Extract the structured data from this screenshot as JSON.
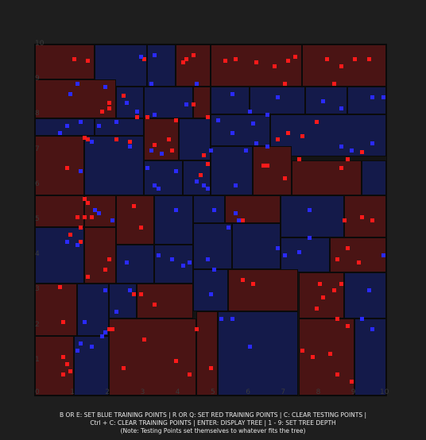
{
  "axes": {
    "x_ticks": [
      "0",
      "1",
      "2",
      "3",
      "4",
      "5",
      "6",
      "7",
      "8",
      "9",
      "10"
    ],
    "y_ticks": [
      "1",
      "2",
      "3",
      "4",
      "5",
      "6",
      "7",
      "8",
      "9",
      "10"
    ]
  },
  "colors": {
    "red_region": "#4a1414",
    "blue_region": "#141a4a",
    "red_point": "#ff1a1a",
    "blue_point": "#2a2aff"
  },
  "regions": [
    {
      "c": "red",
      "x": [
        0,
        1.7
      ],
      "y": [
        9,
        10
      ]
    },
    {
      "c": "blue",
      "x": [
        1.7,
        3.2
      ],
      "y": [
        8.8,
        10
      ]
    },
    {
      "c": "blue",
      "x": [
        3.2,
        4
      ],
      "y": [
        8.8,
        10
      ]
    },
    {
      "c": "red",
      "x": [
        4,
        5
      ],
      "y": [
        8.8,
        10
      ]
    },
    {
      "c": "red",
      "x": [
        5,
        7.6
      ],
      "y": [
        8.8,
        10
      ]
    },
    {
      "c": "red",
      "x": [
        7.6,
        10
      ],
      "y": [
        8.8,
        10
      ]
    },
    {
      "c": "red",
      "x": [
        0,
        2.3
      ],
      "y": [
        7.9,
        9
      ]
    },
    {
      "c": "blue",
      "x": [
        2.3,
        3.1
      ],
      "y": [
        7.9,
        8.8
      ]
    },
    {
      "c": "blue",
      "x": [
        3.1,
        4.5
      ],
      "y": [
        7.9,
        8.8
      ]
    },
    {
      "c": "red",
      "x": [
        4.5,
        5
      ],
      "y": [
        7.9,
        8.8
      ]
    },
    {
      "c": "blue",
      "x": [
        5,
        6.1
      ],
      "y": [
        8,
        8.8
      ]
    },
    {
      "c": "blue",
      "x": [
        6.1,
        7.7
      ],
      "y": [
        8,
        8.8
      ]
    },
    {
      "c": "blue",
      "x": [
        7.7,
        8.9
      ],
      "y": [
        8,
        8.8
      ]
    },
    {
      "c": "blue",
      "x": [
        8.9,
        10
      ],
      "y": [
        8,
        8.8
      ]
    },
    {
      "c": "blue",
      "x": [
        0,
        1.7
      ],
      "y": [
        7.4,
        7.9
      ]
    },
    {
      "c": "blue",
      "x": [
        1.7,
        3.1
      ],
      "y": [
        7.4,
        7.9
      ]
    },
    {
      "c": "red",
      "x": [
        3.1,
        4.1
      ],
      "y": [
        6.7,
        7.9
      ]
    },
    {
      "c": "blue",
      "x": [
        4.1,
        5
      ],
      "y": [
        6.7,
        7.9
      ]
    },
    {
      "c": "blue",
      "x": [
        5,
        6.7
      ],
      "y": [
        7.1,
        8
      ]
    },
    {
      "c": "blue",
      "x": [
        6.7,
        10
      ],
      "y": [
        6.8,
        8
      ]
    },
    {
      "c": "red",
      "x": [
        0,
        1.4
      ],
      "y": [
        5.7,
        7.4
      ]
    },
    {
      "c": "blue",
      "x": [
        1.4,
        3.1
      ],
      "y": [
        5.7,
        7.4
      ]
    },
    {
      "c": "blue",
      "x": [
        3.1,
        4.2
      ],
      "y": [
        5.7,
        6.7
      ]
    },
    {
      "c": "blue",
      "x": [
        4.2,
        5
      ],
      "y": [
        5.7,
        6.7
      ]
    },
    {
      "c": "blue",
      "x": [
        5,
        6.2
      ],
      "y": [
        5.7,
        7.1
      ]
    },
    {
      "c": "red",
      "x": [
        6.2,
        7.3
      ],
      "y": [
        5.7,
        7.1
      ]
    },
    {
      "c": "red",
      "x": [
        7.3,
        9.3
      ],
      "y": [
        5.7,
        6.7
      ]
    },
    {
      "c": "blue",
      "x": [
        9.3,
        10
      ],
      "y": [
        5.7,
        6.7
      ]
    },
    {
      "c": "red",
      "x": [
        0,
        1.4
      ],
      "y": [
        4.8,
        5.7
      ]
    },
    {
      "c": "red",
      "x": [
        1.4,
        2.3
      ],
      "y": [
        4.8,
        5.7
      ]
    },
    {
      "c": "red",
      "x": [
        2.3,
        3.4
      ],
      "y": [
        4.3,
        5.7
      ]
    },
    {
      "c": "blue",
      "x": [
        3.4,
        4.5
      ],
      "y": [
        4.3,
        5.7
      ]
    },
    {
      "c": "blue",
      "x": [
        4.5,
        5.4
      ],
      "y": [
        4.9,
        5.7
      ]
    },
    {
      "c": "red",
      "x": [
        5.4,
        7
      ],
      "y": [
        4.9,
        5.7
      ]
    },
    {
      "c": "blue",
      "x": [
        7,
        8.8
      ],
      "y": [
        4.5,
        5.7
      ]
    },
    {
      "c": "red",
      "x": [
        8.8,
        10
      ],
      "y": [
        4.5,
        5.7
      ]
    },
    {
      "c": "blue",
      "x": [
        0,
        1.4
      ],
      "y": [
        3.2,
        4.8
      ]
    },
    {
      "c": "red",
      "x": [
        1.4,
        2.3
      ],
      "y": [
        3.2,
        4.8
      ]
    },
    {
      "c": "blue",
      "x": [
        2.3,
        3.4
      ],
      "y": [
        3.2,
        4.3
      ]
    },
    {
      "c": "blue",
      "x": [
        3.4,
        4.5
      ],
      "y": [
        3.2,
        4.3
      ]
    },
    {
      "c": "blue",
      "x": [
        4.5,
        5.6
      ],
      "y": [
        3.6,
        4.9
      ]
    },
    {
      "c": "blue",
      "x": [
        5.6,
        7
      ],
      "y": [
        3.6,
        4.9
      ]
    },
    {
      "c": "blue",
      "x": [
        7,
        8.4
      ],
      "y": [
        3.5,
        4.5
      ]
    },
    {
      "c": "red",
      "x": [
        8.4,
        10
      ],
      "y": [
        3.5,
        4.5
      ]
    },
    {
      "c": "red",
      "x": [
        0,
        1.2
      ],
      "y": [
        1.7,
        3.2
      ]
    },
    {
      "c": "blue",
      "x": [
        1.2,
        2.1
      ],
      "y": [
        1.7,
        3.2
      ]
    },
    {
      "c": "blue",
      "x": [
        2.1,
        2.9
      ],
      "y": [
        2.2,
        3.2
      ]
    },
    {
      "c": "red",
      "x": [
        2.9,
        4.5
      ],
      "y": [
        2.2,
        3.2
      ]
    },
    {
      "c": "blue",
      "x": [
        4.5,
        5.5
      ],
      "y": [
        2.4,
        3.6
      ]
    },
    {
      "c": "red",
      "x": [
        5.5,
        7.5
      ],
      "y": [
        2.4,
        3.6
      ]
    },
    {
      "c": "red",
      "x": [
        7.5,
        8.8
      ],
      "y": [
        2.2,
        3.5
      ]
    },
    {
      "c": "blue",
      "x": [
        8.8,
        10
      ],
      "y": [
        2.2,
        3.5
      ]
    },
    {
      "c": "red",
      "x": [
        0,
        1.1
      ],
      "y": [
        0,
        1.7
      ]
    },
    {
      "c": "blue",
      "x": [
        1.1,
        2.1
      ],
      "y": [
        0,
        1.7
      ]
    },
    {
      "c": "red",
      "x": [
        2.1,
        4.6
      ],
      "y": [
        0,
        2.2
      ]
    },
    {
      "c": "red",
      "x": [
        4.6,
        5.2
      ],
      "y": [
        0,
        2.4
      ]
    },
    {
      "c": "blue",
      "x": [
        5.2,
        7.5
      ],
      "y": [
        0,
        2.4
      ]
    },
    {
      "c": "red",
      "x": [
        7.5,
        9.1
      ],
      "y": [
        0,
        2.2
      ]
    },
    {
      "c": "blue",
      "x": [
        9.1,
        10
      ],
      "y": [
        0,
        2.2
      ]
    }
  ],
  "points": [
    {
      "c": "red",
      "x": 1.1,
      "y": 9.6
    },
    {
      "c": "red",
      "x": 1.5,
      "y": 9.55
    },
    {
      "c": "red",
      "x": 3.1,
      "y": 9.6
    },
    {
      "c": "red",
      "x": 4.3,
      "y": 9.6
    },
    {
      "c": "red",
      "x": 4.5,
      "y": 9.7
    },
    {
      "c": "red",
      "x": 4.2,
      "y": 9.5
    },
    {
      "c": "red",
      "x": 5.4,
      "y": 9.55
    },
    {
      "c": "red",
      "x": 5.7,
      "y": 9.6
    },
    {
      "c": "red",
      "x": 6.3,
      "y": 9.5
    },
    {
      "c": "red",
      "x": 6.8,
      "y": 9.4
    },
    {
      "c": "red",
      "x": 7.2,
      "y": 9.55
    },
    {
      "c": "red",
      "x": 7.4,
      "y": 9.65
    },
    {
      "c": "red",
      "x": 7.1,
      "y": 8.9
    },
    {
      "c": "red",
      "x": 8.3,
      "y": 9.6
    },
    {
      "c": "red",
      "x": 8.7,
      "y": 9.4
    },
    {
      "c": "red",
      "x": 9.1,
      "y": 9.6
    },
    {
      "c": "red",
      "x": 9.5,
      "y": 9.6
    },
    {
      "c": "red",
      "x": 8.5,
      "y": 8.9
    },
    {
      "c": "blue",
      "x": 3.0,
      "y": 9.65
    },
    {
      "c": "blue",
      "x": 3.4,
      "y": 9.7
    },
    {
      "c": "blue",
      "x": 3.3,
      "y": 8.9
    },
    {
      "c": "blue",
      "x": 4.6,
      "y": 8.9
    },
    {
      "c": "blue",
      "x": 1.2,
      "y": 8.9
    },
    {
      "c": "blue",
      "x": 2.0,
      "y": 8.8
    },
    {
      "c": "blue",
      "x": 1.0,
      "y": 8.6
    },
    {
      "c": "red",
      "x": 2.1,
      "y": 8.2
    },
    {
      "c": "red",
      "x": 2.1,
      "y": 8.35
    },
    {
      "c": "red",
      "x": 1.9,
      "y": 8.1
    },
    {
      "c": "red",
      "x": 2.5,
      "y": 8.55
    },
    {
      "c": "red",
      "x": 4.5,
      "y": 8.3
    },
    {
      "c": "red",
      "x": 4.9,
      "y": 7.95
    },
    {
      "c": "red",
      "x": 3.2,
      "y": 7.95
    },
    {
      "c": "red",
      "x": 2.9,
      "y": 7.95
    },
    {
      "c": "red",
      "x": 4.0,
      "y": 7.85
    },
    {
      "c": "blue",
      "x": 2.6,
      "y": 8.35
    },
    {
      "c": "blue",
      "x": 2.9,
      "y": 8.1
    },
    {
      "c": "blue",
      "x": 3.4,
      "y": 8.0
    },
    {
      "c": "blue",
      "x": 4.3,
      "y": 8.3
    },
    {
      "c": "blue",
      "x": 5.6,
      "y": 8.6
    },
    {
      "c": "blue",
      "x": 6.1,
      "y": 8.1
    },
    {
      "c": "blue",
      "x": 6.6,
      "y": 8.0
    },
    {
      "c": "blue",
      "x": 6.9,
      "y": 8.5
    },
    {
      "c": "blue",
      "x": 8.2,
      "y": 8.4
    },
    {
      "c": "blue",
      "x": 8.7,
      "y": 8.2
    },
    {
      "c": "blue",
      "x": 9.6,
      "y": 8.5
    },
    {
      "c": "blue",
      "x": 9.9,
      "y": 8.5
    },
    {
      "c": "blue",
      "x": 5.2,
      "y": 7.85
    },
    {
      "c": "blue",
      "x": 5.6,
      "y": 7.5
    },
    {
      "c": "blue",
      "x": 6.2,
      "y": 7.75
    },
    {
      "c": "blue",
      "x": 6.6,
      "y": 7.1
    },
    {
      "c": "red",
      "x": 7.2,
      "y": 7.5
    },
    {
      "c": "red",
      "x": 7.6,
      "y": 7.4
    },
    {
      "c": "red",
      "x": 8.0,
      "y": 7.8
    },
    {
      "c": "red",
      "x": 6.9,
      "y": 7.3
    },
    {
      "c": "blue",
      "x": 0.9,
      "y": 7.7
    },
    {
      "c": "blue",
      "x": 1.3,
      "y": 7.8
    },
    {
      "c": "blue",
      "x": 1.8,
      "y": 7.7
    },
    {
      "c": "blue",
      "x": 2.3,
      "y": 7.8
    },
    {
      "c": "blue",
      "x": 0.7,
      "y": 7.5
    },
    {
      "c": "red",
      "x": 1.4,
      "y": 7.35
    },
    {
      "c": "red",
      "x": 1.5,
      "y": 7.3
    },
    {
      "c": "blue",
      "x": 1.6,
      "y": 7.25
    },
    {
      "c": "red",
      "x": 2.3,
      "y": 7.3
    },
    {
      "c": "red",
      "x": 2.7,
      "y": 7.25
    },
    {
      "c": "red",
      "x": 3.4,
      "y": 7.15
    },
    {
      "c": "red",
      "x": 3.8,
      "y": 7.3
    },
    {
      "c": "red",
      "x": 3.9,
      "y": 7.0
    },
    {
      "c": "blue",
      "x": 3.3,
      "y": 7.0
    },
    {
      "c": "blue",
      "x": 3.6,
      "y": 6.9
    },
    {
      "c": "blue",
      "x": 2.7,
      "y": 7.1
    },
    {
      "c": "blue",
      "x": 5.0,
      "y": 7.0
    },
    {
      "c": "blue",
      "x": 6.0,
      "y": 7.0
    },
    {
      "c": "blue",
      "x": 6.3,
      "y": 7.2
    },
    {
      "c": "blue",
      "x": 8.7,
      "y": 7.1
    },
    {
      "c": "blue",
      "x": 9.0,
      "y": 7.0
    },
    {
      "c": "blue",
      "x": 9.6,
      "y": 7.2
    },
    {
      "c": "red",
      "x": 8.9,
      "y": 6.75
    },
    {
      "c": "red",
      "x": 9.3,
      "y": 6.95
    },
    {
      "c": "red",
      "x": 8.7,
      "y": 6.5
    },
    {
      "c": "red",
      "x": 7.5,
      "y": 6.75
    },
    {
      "c": "red",
      "x": 7.1,
      "y": 6.2
    },
    {
      "c": "red",
      "x": 6.6,
      "y": 6.55
    },
    {
      "c": "red",
      "x": 6.5,
      "y": 6.55
    },
    {
      "c": "red",
      "x": 4.9,
      "y": 6.6
    },
    {
      "c": "red",
      "x": 4.8,
      "y": 6.85
    },
    {
      "c": "red",
      "x": 4.7,
      "y": 6.3
    },
    {
      "c": "red",
      "x": 0.9,
      "y": 6.5
    },
    {
      "c": "blue",
      "x": 1.3,
      "y": 6.4
    },
    {
      "c": "blue",
      "x": 3.2,
      "y": 6.5
    },
    {
      "c": "blue",
      "x": 3.4,
      "y": 6.0
    },
    {
      "c": "blue",
      "x": 4.0,
      "y": 6.4
    },
    {
      "c": "blue",
      "x": 4.6,
      "y": 6.1
    },
    {
      "c": "blue",
      "x": 4.8,
      "y": 6.0
    },
    {
      "c": "blue",
      "x": 4.9,
      "y": 5.9
    },
    {
      "c": "blue",
      "x": 3.5,
      "y": 5.9
    },
    {
      "c": "blue",
      "x": 5.7,
      "y": 6.0
    },
    {
      "c": "red",
      "x": 1.4,
      "y": 5.6
    },
    {
      "c": "red",
      "x": 1.5,
      "y": 5.5
    },
    {
      "c": "red",
      "x": 1.4,
      "y": 5.1
    },
    {
      "c": "red",
      "x": 1.6,
      "y": 5.1
    },
    {
      "c": "red",
      "x": 1.2,
      "y": 5.1
    },
    {
      "c": "red",
      "x": 1.3,
      "y": 4.8
    },
    {
      "c": "red",
      "x": 2.8,
      "y": 5.4
    },
    {
      "c": "red",
      "x": 3.0,
      "y": 4.8
    },
    {
      "c": "red",
      "x": 5.9,
      "y": 5.0
    },
    {
      "c": "red",
      "x": 9.3,
      "y": 5.1
    },
    {
      "c": "red",
      "x": 9.6,
      "y": 5.0
    },
    {
      "c": "red",
      "x": 8.8,
      "y": 5.0
    },
    {
      "c": "blue",
      "x": 1.7,
      "y": 5.3
    },
    {
      "c": "blue",
      "x": 1.8,
      "y": 5.2
    },
    {
      "c": "blue",
      "x": 2.2,
      "y": 5.0
    },
    {
      "c": "blue",
      "x": 4.0,
      "y": 5.3
    },
    {
      "c": "blue",
      "x": 5.1,
      "y": 5.3
    },
    {
      "c": "blue",
      "x": 5.7,
      "y": 5.2
    },
    {
      "c": "blue",
      "x": 5.8,
      "y": 5.0
    },
    {
      "c": "blue",
      "x": 5.5,
      "y": 4.8
    },
    {
      "c": "blue",
      "x": 7.8,
      "y": 5.3
    },
    {
      "c": "red",
      "x": 1.0,
      "y": 4.6
    },
    {
      "c": "red",
      "x": 1.3,
      "y": 4.4
    },
    {
      "c": "red",
      "x": 2.1,
      "y": 3.9
    },
    {
      "c": "red",
      "x": 2.0,
      "y": 3.6
    },
    {
      "c": "red",
      "x": 1.5,
      "y": 3.4
    },
    {
      "c": "red",
      "x": 8.9,
      "y": 4.2
    },
    {
      "c": "red",
      "x": 8.6,
      "y": 3.9
    },
    {
      "c": "red",
      "x": 9.2,
      "y": 3.8
    },
    {
      "c": "blue",
      "x": 0.9,
      "y": 4.4
    },
    {
      "c": "blue",
      "x": 1.2,
      "y": 4.3
    },
    {
      "c": "blue",
      "x": 2.6,
      "y": 3.8
    },
    {
      "c": "blue",
      "x": 3.5,
      "y": 4.0
    },
    {
      "c": "blue",
      "x": 3.9,
      "y": 3.9
    },
    {
      "c": "blue",
      "x": 4.2,
      "y": 3.7
    },
    {
      "c": "blue",
      "x": 4.4,
      "y": 3.8
    },
    {
      "c": "blue",
      "x": 5.1,
      "y": 3.6
    },
    {
      "c": "blue",
      "x": 6.9,
      "y": 4.2
    },
    {
      "c": "blue",
      "x": 7.1,
      "y": 4.0
    },
    {
      "c": "blue",
      "x": 7.5,
      "y": 4.1
    },
    {
      "c": "blue",
      "x": 7.8,
      "y": 4.5
    },
    {
      "c": "blue",
      "x": 9.9,
      "y": 4.0
    },
    {
      "c": "blue",
      "x": 4.9,
      "y": 3.9
    },
    {
      "c": "red",
      "x": 0.7,
      "y": 3.1
    },
    {
      "c": "red",
      "x": 0.8,
      "y": 2.1
    },
    {
      "c": "red",
      "x": 3.0,
      "y": 2.9
    },
    {
      "c": "red",
      "x": 3.4,
      "y": 2.6
    },
    {
      "c": "red",
      "x": 2.8,
      "y": 2.9
    },
    {
      "c": "red",
      "x": 2.1,
      "y": 1.9
    },
    {
      "c": "red",
      "x": 5.9,
      "y": 3.3
    },
    {
      "c": "red",
      "x": 6.2,
      "y": 3.2
    },
    {
      "c": "red",
      "x": 8.1,
      "y": 3.2
    },
    {
      "c": "red",
      "x": 8.5,
      "y": 3.0
    },
    {
      "c": "red",
      "x": 8.2,
      "y": 2.8
    },
    {
      "c": "red",
      "x": 8.7,
      "y": 3.2
    },
    {
      "c": "red",
      "x": 8.6,
      "y": 2.2
    },
    {
      "c": "red",
      "x": 8.9,
      "y": 2.0
    },
    {
      "c": "red",
      "x": 8.0,
      "y": 2.5
    },
    {
      "c": "blue",
      "x": 2.0,
      "y": 3.0
    },
    {
      "c": "blue",
      "x": 2.7,
      "y": 3.0
    },
    {
      "c": "blue",
      "x": 2.3,
      "y": 2.4
    },
    {
      "c": "blue",
      "x": 1.4,
      "y": 2.1
    },
    {
      "c": "blue",
      "x": 2.0,
      "y": 1.8
    },
    {
      "c": "blue",
      "x": 1.9,
      "y": 1.7
    },
    {
      "c": "blue",
      "x": 1.3,
      "y": 1.5
    },
    {
      "c": "blue",
      "x": 1.2,
      "y": 1.3
    },
    {
      "c": "blue",
      "x": 1.6,
      "y": 1.4
    },
    {
      "c": "blue",
      "x": 5.0,
      "y": 2.9
    },
    {
      "c": "blue",
      "x": 5.3,
      "y": 2.2
    },
    {
      "c": "blue",
      "x": 5.6,
      "y": 2.2
    },
    {
      "c": "blue",
      "x": 6.1,
      "y": 1.4
    },
    {
      "c": "blue",
      "x": 9.5,
      "y": 3.0
    },
    {
      "c": "blue",
      "x": 9.3,
      "y": 2.2
    },
    {
      "c": "blue",
      "x": 9.6,
      "y": 1.9
    },
    {
      "c": "red",
      "x": 2.2,
      "y": 1.9
    },
    {
      "c": "red",
      "x": 4.6,
      "y": 1.9
    },
    {
      "c": "red",
      "x": 3.1,
      "y": 1.6
    },
    {
      "c": "red",
      "x": 4.0,
      "y": 1.0
    },
    {
      "c": "red",
      "x": 2.5,
      "y": 0.8
    },
    {
      "c": "red",
      "x": 0.9,
      "y": 0.9
    },
    {
      "c": "red",
      "x": 1.0,
      "y": 0.7
    },
    {
      "c": "red",
      "x": 0.8,
      "y": 0.6
    },
    {
      "c": "red",
      "x": 0.8,
      "y": 1.1
    },
    {
      "c": "red",
      "x": 5.0,
      "y": 0.8
    },
    {
      "c": "red",
      "x": 7.6,
      "y": 1.3
    },
    {
      "c": "red",
      "x": 8.4,
      "y": 1.2
    },
    {
      "c": "red",
      "x": 7.9,
      "y": 1.1
    },
    {
      "c": "red",
      "x": 8.6,
      "y": 0.6
    },
    {
      "c": "red",
      "x": 9.0,
      "y": 0.4
    },
    {
      "c": "red",
      "x": 4.4,
      "y": 0.6
    }
  ],
  "footer": {
    "line1": "B OR E: SET BLUE TRAINING POINTS | R OR Q: SET RED TRAINING POINTS | C: CLEAR TESTING POINTS |",
    "line2": "Ctrl + C: CLEAR TRAINING POINTS | ENTER: DISPLAY TREE | 1 - 9: SET TREE DEPTH",
    "line3": "(Note: Testing Points set themselves to whatever fits the tree)"
  }
}
